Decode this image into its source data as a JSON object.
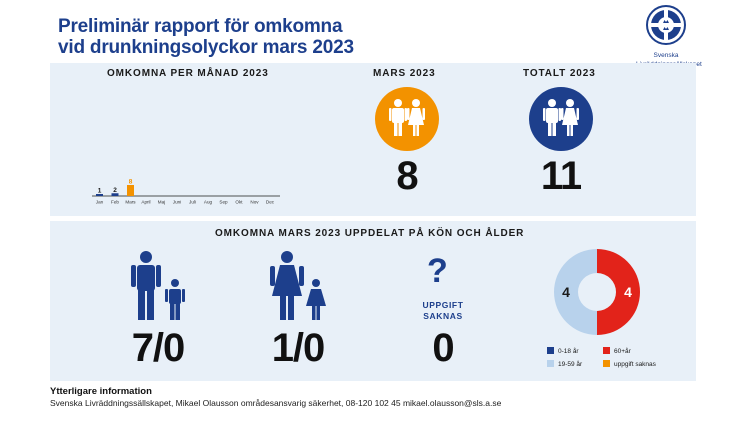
{
  "title": {
    "line1": "Preliminär rapport för omkomna",
    "line2": "vid drunkningsolyckor mars 2023"
  },
  "logo": {
    "icon": "lifebuoy-crown-icon",
    "line1": "Svenska",
    "line2": "Livräddningssällskapet"
  },
  "monthly": {
    "heading": "OMKOMNA PER MÅNAD 2023",
    "chart_data": {
      "type": "bar",
      "categories": [
        "Jan",
        "Feb",
        "Mars",
        "April",
        "Maj",
        "Juni",
        "Juli",
        "Aug",
        "Sep",
        "Okt",
        "Nov",
        "Dec"
      ],
      "values": [
        1,
        2,
        8,
        null,
        null,
        null,
        null,
        null,
        null,
        null,
        null,
        null
      ],
      "colors": [
        "#1d3f8c",
        "#1d3f8c",
        "#f39200"
      ]
    }
  },
  "march": {
    "heading": "MARS 2023",
    "value": "8",
    "color": "#f39200",
    "icon": "man-woman-icon"
  },
  "total": {
    "heading": "TOTALT 2023",
    "value": "11",
    "color": "#1d3f8c",
    "icon": "man-woman-icon"
  },
  "breakdown": {
    "heading": "OMKOMNA MARS 2023 UPPDELAT PÅ KÖN OCH ÅLDER",
    "men": {
      "value": "7/0",
      "icon": "man-boy-icon"
    },
    "women": {
      "value": "1/0",
      "icon": "woman-girl-icon"
    },
    "unknown": {
      "line1": "UPPGIFT",
      "line2": "SAKNAS",
      "value": "0",
      "icon": "question-mark-icon"
    },
    "donut": {
      "chart_data": {
        "type": "pie",
        "categories": [
          "0-18 år",
          "19-59 år",
          "60+år",
          "uppgift saknas"
        ],
        "values": [
          0,
          4,
          4,
          0
        ],
        "colors": [
          "#1d3f8c",
          "#b8d2ec",
          "#e2231a",
          "#f39200"
        ],
        "labels": [
          "",
          "4",
          "4",
          ""
        ]
      }
    },
    "legend": [
      {
        "label": "0-18 år",
        "color": "#1d3f8c"
      },
      {
        "label": "60+år",
        "color": "#e2231a"
      },
      {
        "label": "19-59 år",
        "color": "#b8d2ec"
      },
      {
        "label": "uppgift saknas",
        "color": "#f39200"
      }
    ]
  },
  "footer": {
    "heading": "Ytterligare information",
    "text": "Svenska Livräddningssällskapet, Mikael Olausson områdesansvarig säkerhet, 08-120 102 45 mikael.olausson@sls.a.se"
  }
}
